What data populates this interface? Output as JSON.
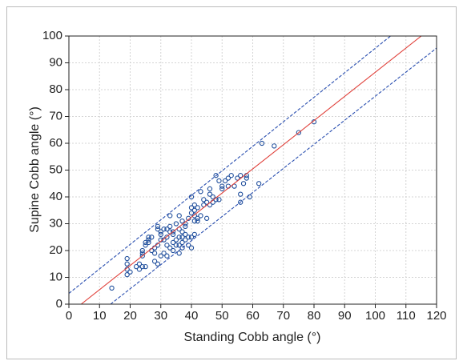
{
  "chart_data": {
    "type": "scatter",
    "x_label": "Standing Cobb angle (°)",
    "y_label": "Supine Cobb angle (°)",
    "xlim": [
      0,
      120
    ],
    "ylim": [
      0,
      100
    ],
    "xticks": [
      0,
      10,
      20,
      30,
      40,
      50,
      60,
      70,
      80,
      90,
      100,
      110,
      120
    ],
    "yticks": [
      0,
      10,
      20,
      30,
      40,
      50,
      60,
      70,
      80,
      90,
      100
    ],
    "grid": true,
    "series": [
      {
        "type": "scatter",
        "color": "#1f4e9c",
        "x": [
          14,
          19,
          19,
          19,
          19,
          20,
          23,
          23,
          24,
          24,
          24,
          25,
          25,
          25,
          26,
          26,
          26,
          27,
          28,
          28,
          29,
          29,
          29,
          29,
          30,
          30,
          30,
          31,
          31,
          31,
          32,
          32,
          32,
          33,
          33,
          33,
          33,
          34,
          34,
          34,
          35,
          35,
          35,
          36,
          36,
          36,
          37,
          37,
          37,
          37,
          37,
          38,
          38,
          38,
          39,
          39,
          39,
          40,
          40,
          40,
          40,
          40,
          41,
          41,
          41,
          41,
          41,
          42,
          42,
          43,
          43,
          44,
          45,
          45,
          46,
          46,
          46,
          47,
          47,
          48,
          48,
          49,
          49,
          50,
          50,
          51,
          52,
          52,
          53,
          54,
          55,
          56,
          56,
          56,
          57,
          58,
          58,
          59,
          62,
          63,
          67,
          75,
          80,
          27,
          28,
          30,
          32,
          34,
          36,
          38,
          42,
          44,
          36,
          22,
          24
        ],
        "values": [
          6,
          11,
          13,
          15,
          17,
          12,
          13,
          15,
          14,
          18,
          20,
          14,
          22,
          23,
          24,
          25,
          23,
          20,
          19,
          16,
          15,
          22,
          28,
          29,
          18,
          26,
          27,
          19,
          24,
          28,
          18,
          22,
          25,
          21,
          27,
          29,
          33,
          20,
          23,
          26,
          22,
          24,
          30,
          19,
          22,
          28,
          21,
          23,
          25,
          27,
          31,
          24,
          30,
          29,
          25,
          22,
          32,
          25,
          21,
          34,
          36,
          40,
          26,
          31,
          33,
          35,
          37,
          32,
          36,
          33,
          42,
          37,
          38,
          32,
          37,
          41,
          43,
          38,
          40,
          39,
          48,
          39,
          46,
          43,
          44,
          46,
          44,
          47,
          48,
          44,
          47,
          41,
          48,
          38,
          45,
          47,
          48,
          40,
          45,
          60,
          59,
          64,
          68,
          25,
          21,
          24,
          28,
          27,
          25,
          26,
          31,
          39,
          33,
          14,
          19
        ]
      },
      {
        "type": "line",
        "color": "#e0403a",
        "dash": false,
        "x": [
          4,
          115
        ],
        "values": [
          0,
          100
        ]
      },
      {
        "type": "line",
        "color": "#2a4fb0",
        "dash": true,
        "x": [
          0,
          105
        ],
        "values": [
          4,
          100
        ]
      },
      {
        "type": "line",
        "color": "#2a4fb0",
        "dash": true,
        "x": [
          13.6,
          120
        ],
        "values": [
          0,
          95.5
        ]
      }
    ]
  }
}
